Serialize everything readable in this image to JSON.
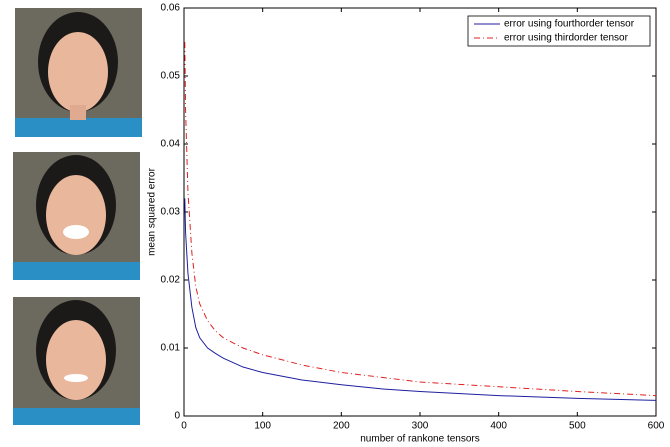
{
  "chart_data": {
    "type": "line",
    "xlabel": "number of rankone tensors",
    "ylabel": "mean squared error",
    "x": [
      1,
      2,
      5,
      10,
      15,
      20,
      30,
      40,
      50,
      75,
      100,
      150,
      200,
      250,
      300,
      400,
      500,
      600
    ],
    "series": [
      {
        "name": "error using fourthorder tensor",
        "color": "#1f1fa0",
        "style": "solid",
        "values": [
          0.032,
          0.027,
          0.021,
          0.016,
          0.013,
          0.0115,
          0.01,
          0.0092,
          0.0085,
          0.0072,
          0.0064,
          0.0053,
          0.0046,
          0.004,
          0.0036,
          0.003,
          0.0026,
          0.0023
        ]
      },
      {
        "name": "error using thirdorder tensor",
        "color": "#e02020",
        "style": "dashdot",
        "values": [
          0.055,
          0.045,
          0.033,
          0.024,
          0.019,
          0.0165,
          0.014,
          0.0125,
          0.0115,
          0.01,
          0.009,
          0.0075,
          0.0064,
          0.0057,
          0.005,
          0.0043,
          0.0036,
          0.003
        ]
      }
    ],
    "xlim": [
      0,
      600
    ],
    "xticks": [
      0,
      100,
      200,
      300,
      400,
      500,
      600
    ],
    "ylim": [
      0,
      0.06
    ],
    "yticks": [
      0,
      0.01,
      0.02,
      0.03,
      0.04,
      0.05,
      0.06
    ],
    "legend": "upper right"
  }
}
